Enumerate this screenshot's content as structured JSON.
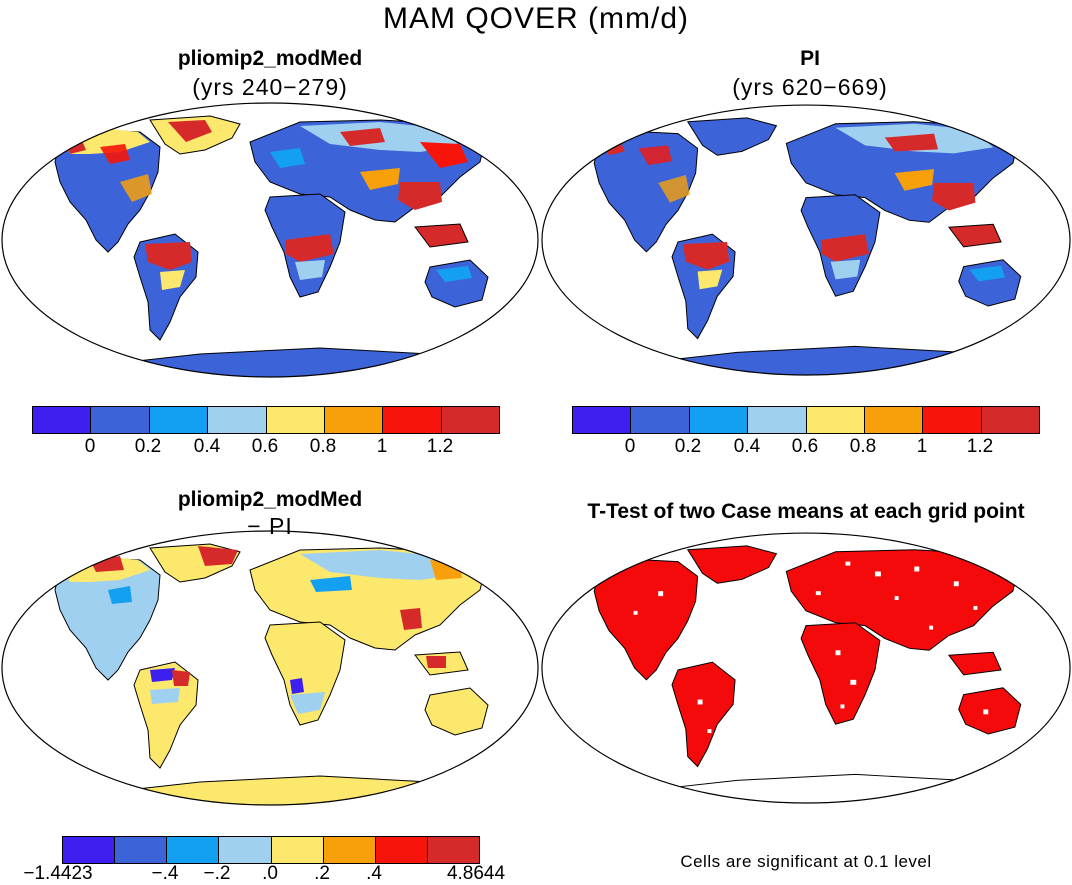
{
  "figure": {
    "title": "MAM QOVER (mm/d)"
  },
  "panels": {
    "top_left": {
      "title": "pliomip2_modMed",
      "subtitle": "(yrs 240−279)"
    },
    "top_right": {
      "title": "PI",
      "subtitle": "(yrs 620−669)"
    },
    "bottom_left": {
      "title": "pliomip2_modMed",
      "subtitle": "− PI"
    },
    "bottom_right": {
      "title": "T-Test of two Case means at each grid point",
      "note": "Cells are significant at 0.1 level"
    }
  },
  "colorbars": {
    "absolute": {
      "colors": [
        "#3d1ff0",
        "#3d63d8",
        "#14a0f0",
        "#a0d0f0",
        "#fbe86c",
        "#f7a00a",
        "#f7140a",
        "#d62a2a"
      ],
      "labels": [
        "0",
        "0.2",
        "0.4",
        "0.6",
        "0.8",
        "1",
        "1.2"
      ]
    },
    "difference": {
      "colors": [
        "#3d1ff0",
        "#3d63d8",
        "#14a0f0",
        "#a0d0f0",
        "#fbe86c",
        "#f7a00a",
        "#f7140a",
        "#d62a2a"
      ],
      "labels": [
        "−1.4423",
        "−.4",
        "−.2",
        ".0",
        ".2",
        ".4",
        "4.8644"
      ]
    }
  },
  "legend_colors": {
    "significant": "#f40a0a",
    "coast": "#000000"
  }
}
